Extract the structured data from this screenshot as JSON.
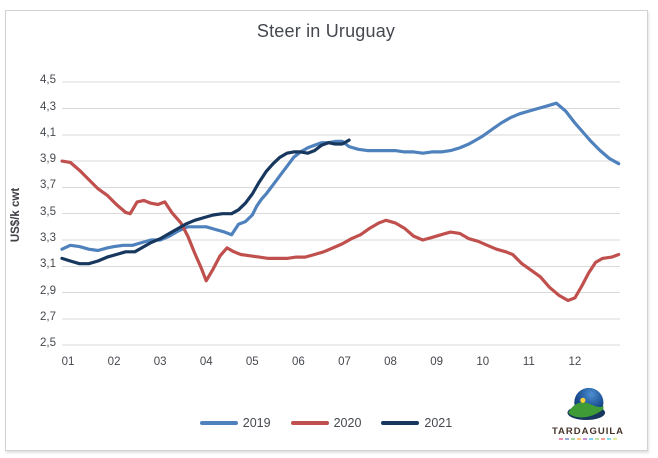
{
  "window": {
    "background": "#ffffff",
    "frame_border_color": "#d2d2d2"
  },
  "chart_data": {
    "type": "line",
    "title": "Steer in Uruguay",
    "ylabel": "US$/k cwt",
    "xlabel": "",
    "ylim": [
      2.5,
      4.5
    ],
    "xlim": [
      0.87,
      13.0
    ],
    "grid": true,
    "gridline_color": "#d9d9d9",
    "legend_position": "bottom",
    "y_ticks": [
      {
        "label": "4,5",
        "value": 4.5
      },
      {
        "label": "4,3",
        "value": 4.3
      },
      {
        "label": "4,1",
        "value": 4.1
      },
      {
        "label": "3,9",
        "value": 3.9
      },
      {
        "label": "3,7",
        "value": 3.7
      },
      {
        "label": "3,5",
        "value": 3.5
      },
      {
        "label": "3,3",
        "value": 3.3
      },
      {
        "label": "3,1",
        "value": 3.1
      },
      {
        "label": "2,9",
        "value": 2.9
      },
      {
        "label": "2,7",
        "value": 2.7
      },
      {
        "label": "2,5",
        "value": 2.5
      }
    ],
    "x_ticks": [
      {
        "label": "01",
        "month": 1
      },
      {
        "label": "02",
        "month": 2
      },
      {
        "label": "03",
        "month": 3
      },
      {
        "label": "04",
        "month": 4
      },
      {
        "label": "05",
        "month": 5
      },
      {
        "label": "06",
        "month": 6
      },
      {
        "label": "07",
        "month": 7
      },
      {
        "label": "08",
        "month": 8
      },
      {
        "label": "09",
        "month": 9
      },
      {
        "label": "10",
        "month": 10
      },
      {
        "label": "11",
        "month": 11
      },
      {
        "label": "12",
        "month": 12
      }
    ],
    "series": [
      {
        "name": "2019",
        "color": "#4F81BD",
        "points": [
          [
            0.87,
            3.23
          ],
          [
            1.05,
            3.26
          ],
          [
            1.25,
            3.25
          ],
          [
            1.45,
            3.23
          ],
          [
            1.65,
            3.22
          ],
          [
            1.85,
            3.24
          ],
          [
            2.0,
            3.25
          ],
          [
            2.2,
            3.26
          ],
          [
            2.4,
            3.26
          ],
          [
            2.6,
            3.28
          ],
          [
            2.8,
            3.3
          ],
          [
            3.0,
            3.3
          ],
          [
            3.2,
            3.33
          ],
          [
            3.4,
            3.37
          ],
          [
            3.6,
            3.4
          ],
          [
            3.8,
            3.4
          ],
          [
            4.0,
            3.4
          ],
          [
            4.2,
            3.38
          ],
          [
            4.4,
            3.36
          ],
          [
            4.55,
            3.34
          ],
          [
            4.7,
            3.42
          ],
          [
            4.85,
            3.44
          ],
          [
            5.0,
            3.49
          ],
          [
            5.1,
            3.56
          ],
          [
            5.2,
            3.61
          ],
          [
            5.3,
            3.65
          ],
          [
            5.45,
            3.72
          ],
          [
            5.6,
            3.79
          ],
          [
            5.75,
            3.86
          ],
          [
            5.9,
            3.93
          ],
          [
            6.05,
            3.97
          ],
          [
            6.2,
            4.0
          ],
          [
            6.35,
            4.02
          ],
          [
            6.5,
            4.04
          ],
          [
            6.65,
            4.04
          ],
          [
            6.8,
            4.05
          ],
          [
            6.95,
            4.05
          ],
          [
            7.1,
            4.01
          ],
          [
            7.3,
            3.99
          ],
          [
            7.5,
            3.98
          ],
          [
            7.7,
            3.98
          ],
          [
            7.9,
            3.98
          ],
          [
            8.1,
            3.98
          ],
          [
            8.3,
            3.97
          ],
          [
            8.5,
            3.97
          ],
          [
            8.7,
            3.96
          ],
          [
            8.9,
            3.97
          ],
          [
            9.1,
            3.97
          ],
          [
            9.3,
            3.98
          ],
          [
            9.5,
            4.0
          ],
          [
            9.7,
            4.03
          ],
          [
            9.85,
            4.06
          ],
          [
            10.0,
            4.09
          ],
          [
            10.2,
            4.14
          ],
          [
            10.4,
            4.19
          ],
          [
            10.6,
            4.23
          ],
          [
            10.8,
            4.26
          ],
          [
            11.0,
            4.28
          ],
          [
            11.2,
            4.3
          ],
          [
            11.4,
            4.32
          ],
          [
            11.6,
            4.34
          ],
          [
            11.8,
            4.28
          ],
          [
            12.0,
            4.19
          ],
          [
            12.2,
            4.11
          ],
          [
            12.35,
            4.05
          ],
          [
            12.55,
            3.98
          ],
          [
            12.75,
            3.92
          ],
          [
            12.95,
            3.88
          ]
        ]
      },
      {
        "name": "2020",
        "color": "#C0504D",
        "points": [
          [
            0.87,
            3.9
          ],
          [
            1.05,
            3.89
          ],
          [
            1.25,
            3.83
          ],
          [
            1.45,
            3.76
          ],
          [
            1.65,
            3.69
          ],
          [
            1.85,
            3.64
          ],
          [
            2.05,
            3.57
          ],
          [
            2.25,
            3.51
          ],
          [
            2.35,
            3.5
          ],
          [
            2.5,
            3.59
          ],
          [
            2.65,
            3.6
          ],
          [
            2.8,
            3.58
          ],
          [
            2.95,
            3.57
          ],
          [
            3.1,
            3.59
          ],
          [
            3.25,
            3.51
          ],
          [
            3.45,
            3.43
          ],
          [
            3.6,
            3.33
          ],
          [
            3.75,
            3.2
          ],
          [
            3.9,
            3.08
          ],
          [
            4.0,
            2.99
          ],
          [
            4.15,
            3.08
          ],
          [
            4.3,
            3.18
          ],
          [
            4.45,
            3.24
          ],
          [
            4.6,
            3.21
          ],
          [
            4.75,
            3.19
          ],
          [
            4.95,
            3.18
          ],
          [
            5.15,
            3.17
          ],
          [
            5.35,
            3.16
          ],
          [
            5.55,
            3.16
          ],
          [
            5.75,
            3.16
          ],
          [
            5.95,
            3.17
          ],
          [
            6.15,
            3.17
          ],
          [
            6.35,
            3.19
          ],
          [
            6.55,
            3.21
          ],
          [
            6.75,
            3.24
          ],
          [
            6.95,
            3.27
          ],
          [
            7.15,
            3.31
          ],
          [
            7.35,
            3.34
          ],
          [
            7.55,
            3.39
          ],
          [
            7.75,
            3.43
          ],
          [
            7.9,
            3.45
          ],
          [
            8.1,
            3.43
          ],
          [
            8.3,
            3.39
          ],
          [
            8.5,
            3.33
          ],
          [
            8.7,
            3.3
          ],
          [
            8.9,
            3.32
          ],
          [
            9.1,
            3.34
          ],
          [
            9.3,
            3.36
          ],
          [
            9.5,
            3.35
          ],
          [
            9.7,
            3.31
          ],
          [
            9.9,
            3.29
          ],
          [
            10.1,
            3.26
          ],
          [
            10.3,
            3.23
          ],
          [
            10.5,
            3.21
          ],
          [
            10.65,
            3.19
          ],
          [
            10.85,
            3.12
          ],
          [
            11.05,
            3.07
          ],
          [
            11.25,
            3.02
          ],
          [
            11.45,
            2.94
          ],
          [
            11.65,
            2.88
          ],
          [
            11.85,
            2.84
          ],
          [
            12.0,
            2.86
          ],
          [
            12.15,
            2.95
          ],
          [
            12.3,
            3.05
          ],
          [
            12.45,
            3.13
          ],
          [
            12.6,
            3.16
          ],
          [
            12.8,
            3.17
          ],
          [
            12.95,
            3.19
          ]
        ]
      },
      {
        "name": "2021",
        "color": "#17375E",
        "points": [
          [
            0.87,
            3.16
          ],
          [
            1.05,
            3.14
          ],
          [
            1.25,
            3.12
          ],
          [
            1.45,
            3.12
          ],
          [
            1.65,
            3.14
          ],
          [
            1.85,
            3.17
          ],
          [
            2.05,
            3.19
          ],
          [
            2.25,
            3.21
          ],
          [
            2.45,
            3.21
          ],
          [
            2.6,
            3.24
          ],
          [
            2.8,
            3.28
          ],
          [
            3.0,
            3.31
          ],
          [
            3.15,
            3.34
          ],
          [
            3.35,
            3.38
          ],
          [
            3.55,
            3.42
          ],
          [
            3.75,
            3.45
          ],
          [
            3.95,
            3.47
          ],
          [
            4.15,
            3.49
          ],
          [
            4.35,
            3.5
          ],
          [
            4.55,
            3.5
          ],
          [
            4.7,
            3.53
          ],
          [
            4.85,
            3.58
          ],
          [
            5.0,
            3.65
          ],
          [
            5.15,
            3.74
          ],
          [
            5.3,
            3.82
          ],
          [
            5.45,
            3.88
          ],
          [
            5.6,
            3.93
          ],
          [
            5.75,
            3.96
          ],
          [
            5.9,
            3.97
          ],
          [
            6.05,
            3.97
          ],
          [
            6.2,
            3.96
          ],
          [
            6.35,
            3.98
          ],
          [
            6.5,
            4.02
          ],
          [
            6.65,
            4.04
          ],
          [
            6.8,
            4.03
          ],
          [
            6.95,
            4.03
          ],
          [
            7.1,
            4.06
          ]
        ]
      }
    ]
  },
  "logo": {
    "text": "TARDAGUILA",
    "sky_color_top": "#4d8fd1",
    "sky_color_mid": "#1c4e93",
    "sky_color_edge": "#0c2a5a",
    "hill_color": "#3e9b35",
    "hill_shadow_color": "#17375E",
    "sun_color": "#ffd23a",
    "substrip_colors": [
      "#e91e63",
      "#3f51b5",
      "#4caf50",
      "#ff9800",
      "#9c27b0",
      "#03a9f4",
      "#8bc34a",
      "#f44336",
      "#00bcd4",
      "#cddc39"
    ]
  }
}
